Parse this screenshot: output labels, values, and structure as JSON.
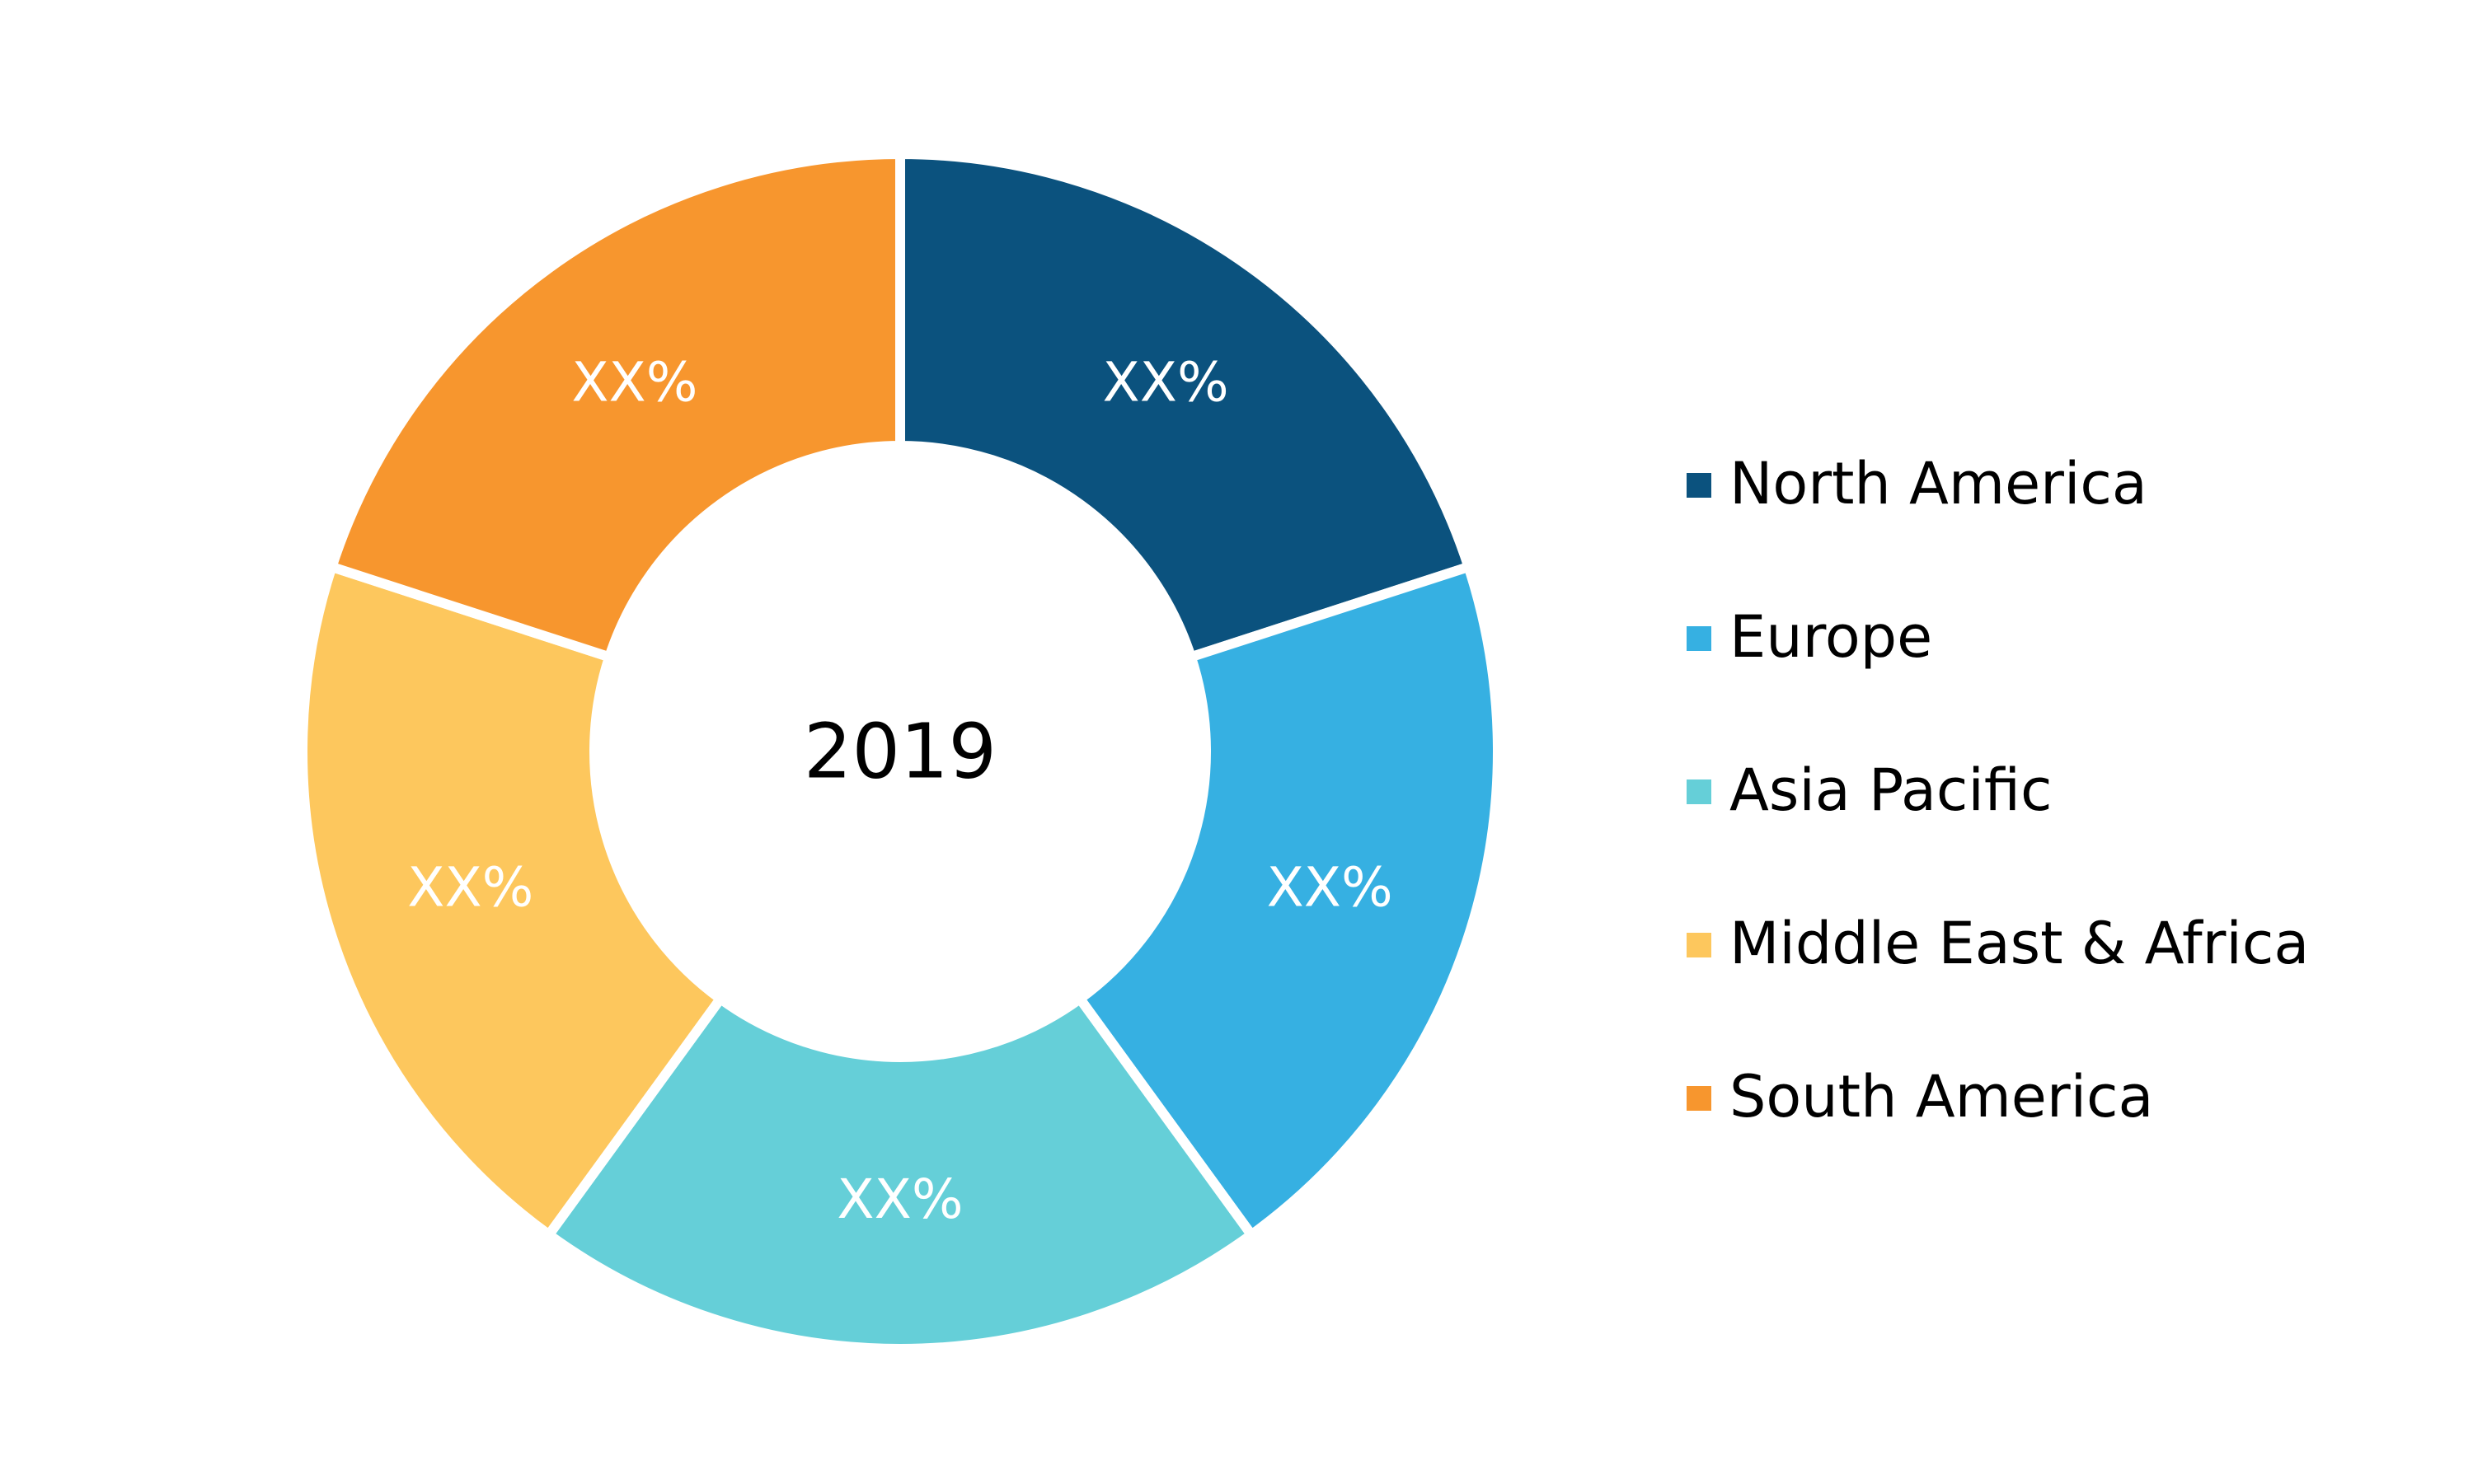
{
  "chart_data": {
    "type": "donut",
    "center_label": "2019",
    "categories": [
      "North America",
      "Europe",
      "Asia Pacific",
      "Middle East & Africa",
      "South America"
    ],
    "values": [
      20,
      20,
      20,
      20,
      20
    ],
    "value_labels": [
      "XX%",
      "XX%",
      "XX%",
      "XX%",
      "XX%"
    ],
    "colors": [
      "#0b527e",
      "#36b0e2",
      "#65cfd8",
      "#fdc75d",
      "#f7962e"
    ],
    "legend": "right"
  }
}
